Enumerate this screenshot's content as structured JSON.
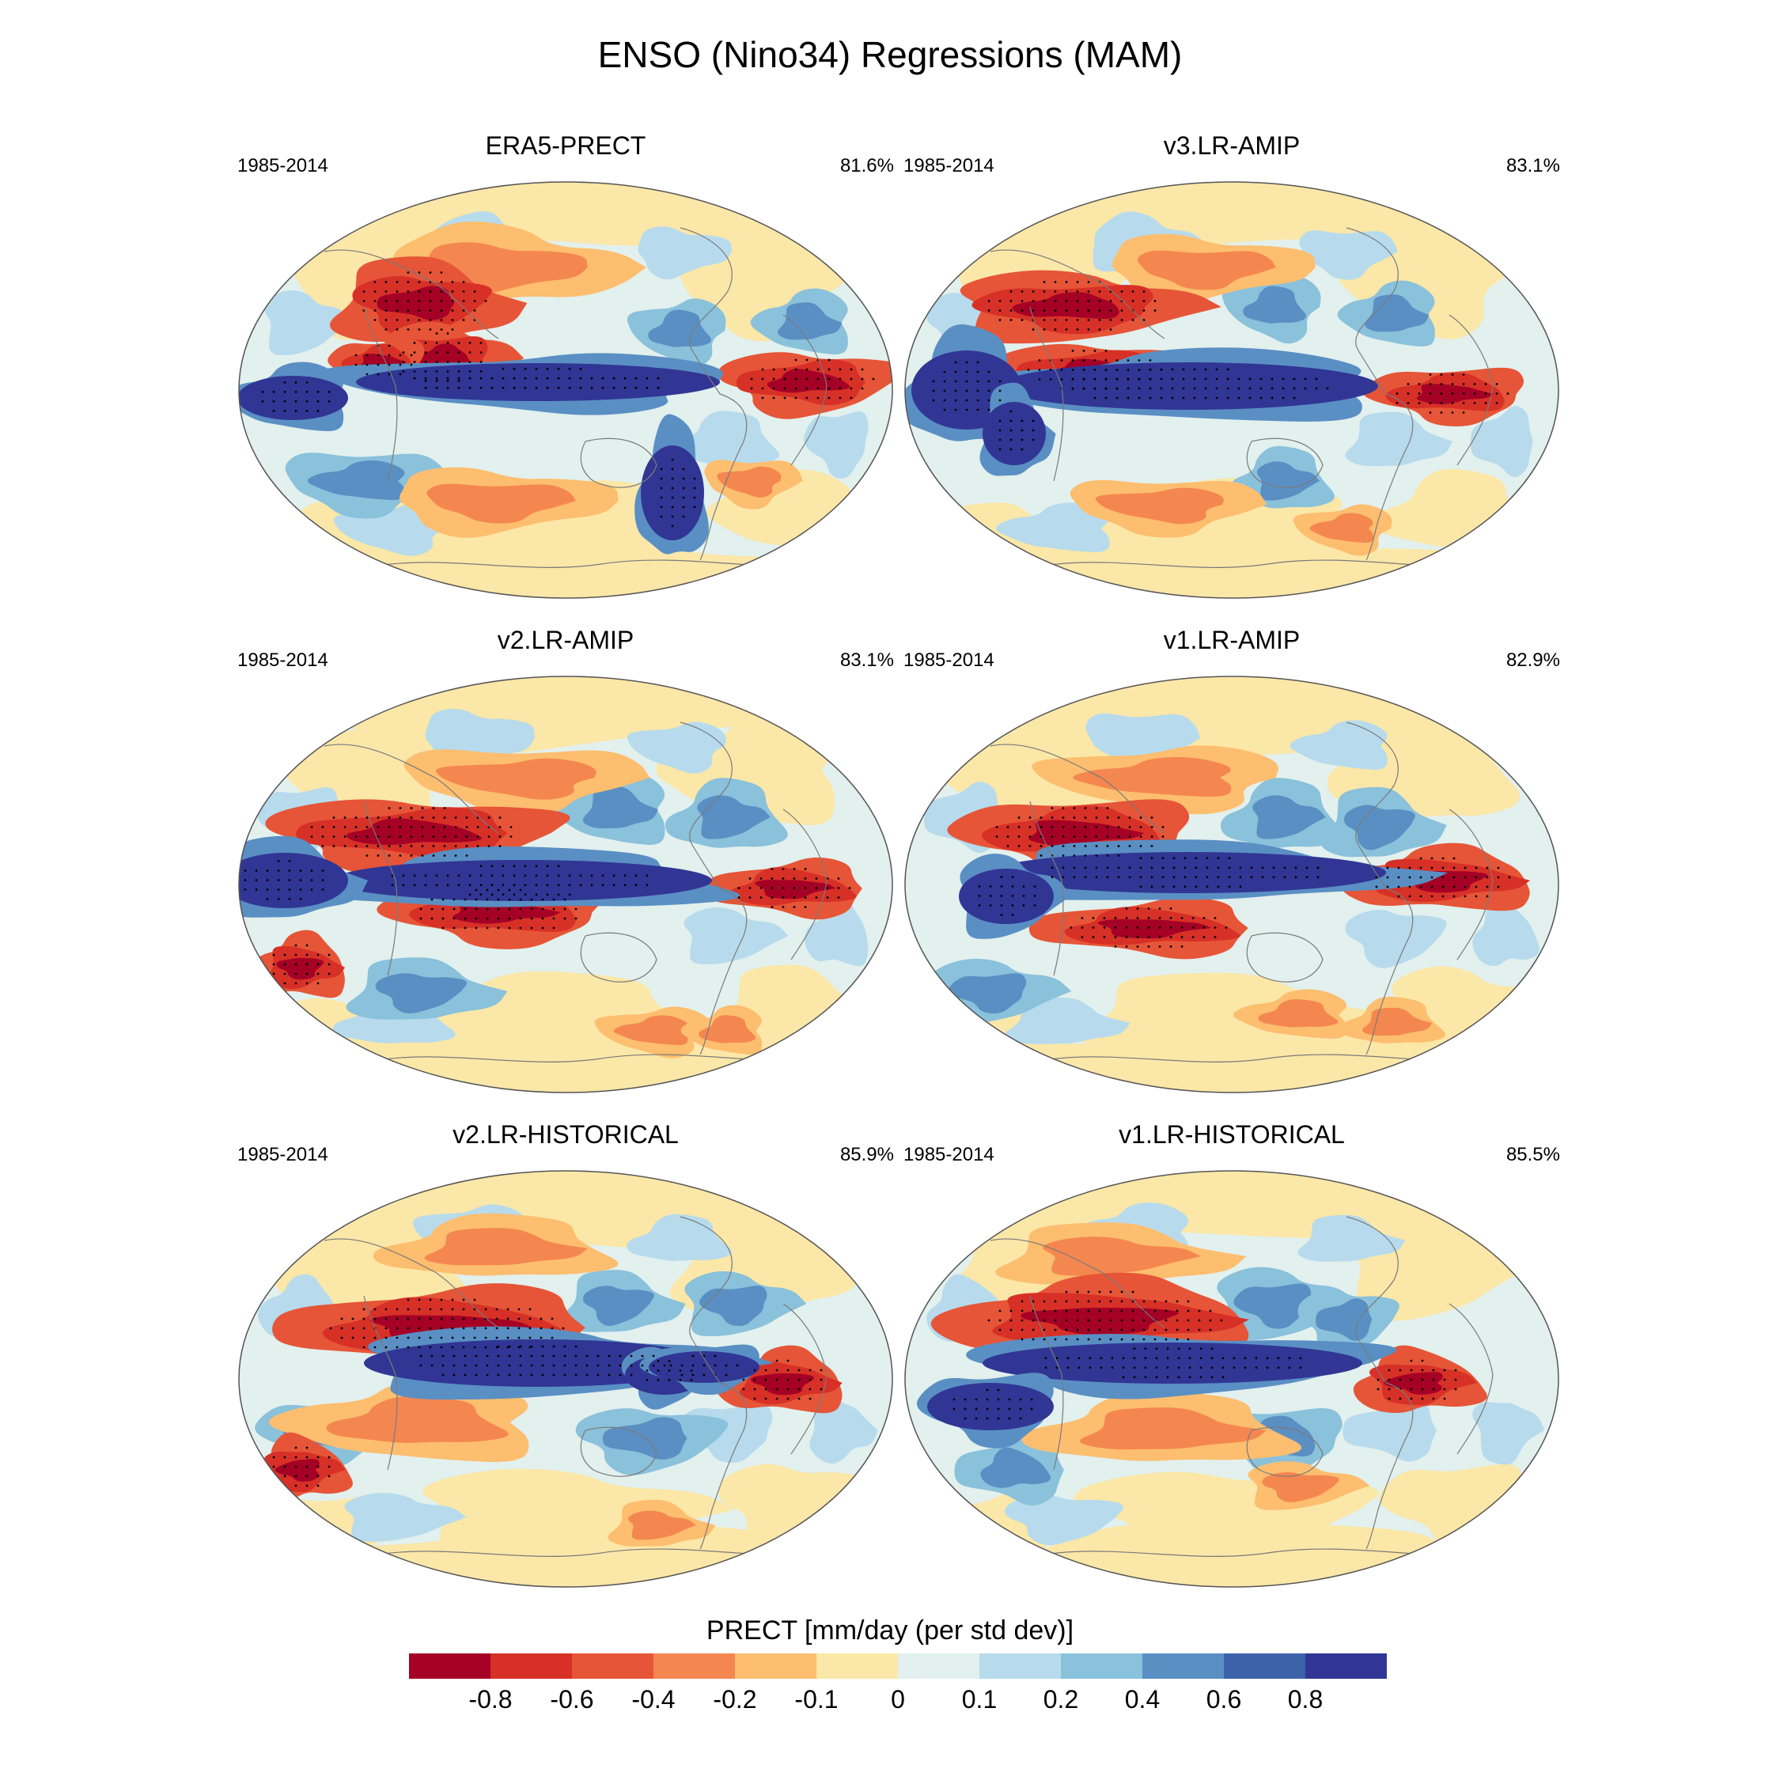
{
  "figure": {
    "title": "ENSO (Nino34) Regressions (MAM)"
  },
  "panels": [
    {
      "name": "ERA5-PRECT",
      "years": "1985-2014",
      "pct": "81.6%"
    },
    {
      "name": "v3.LR-AMIP",
      "years": "1985-2014",
      "pct": "83.1%"
    },
    {
      "name": "v2.LR-AMIP",
      "years": "1985-2014",
      "pct": "83.1%"
    },
    {
      "name": "v1.LR-AMIP",
      "years": "1985-2014",
      "pct": "82.9%"
    },
    {
      "name": "v2.LR-HISTORICAL",
      "years": "1985-2014",
      "pct": "85.9%"
    },
    {
      "name": "v1.LR-HISTORICAL",
      "years": "1985-2014",
      "pct": "85.5%"
    }
  ],
  "colorbar": {
    "label": "PRECT [mm/day (per std dev)]",
    "colors": [
      "#a50026",
      "#d73027",
      "#e65537",
      "#f4874f",
      "#fdbe6f",
      "#fbe7a8",
      "#e2f0ee",
      "#b7dbec",
      "#8ac1db",
      "#5a8fc3",
      "#3c62aa",
      "#313695"
    ],
    "tick_labels": [
      "-0.8",
      "-0.6",
      "-0.4",
      "-0.2",
      "-0.1",
      "0",
      "0.1",
      "0.2",
      "0.4",
      "0.6",
      "0.8"
    ]
  }
}
